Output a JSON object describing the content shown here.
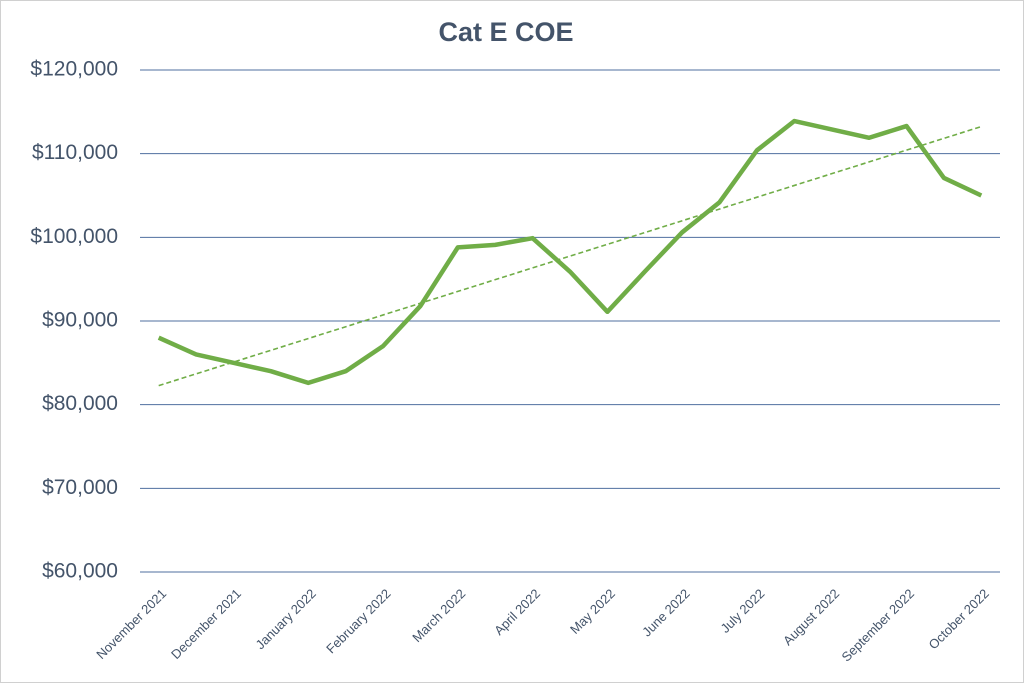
{
  "chart_data": {
    "type": "line",
    "title": "Cat E COE",
    "categories": [
      "November 2021",
      null,
      "December 2021",
      null,
      "January 2022",
      null,
      "February 2022",
      null,
      "March 2022",
      null,
      "April 2022",
      null,
      "May 2022",
      null,
      "June 2022",
      null,
      "July 2022",
      null,
      "August 2022",
      null,
      "September 2022",
      null,
      "October 2022"
    ],
    "series": [
      {
        "color": "#70ad47",
        "values": [
          88000,
          86000,
          85000,
          84000,
          82600,
          84000,
          87000,
          91800,
          98800,
          99100,
          99900,
          95900,
          91100,
          95900,
          100600,
          104200,
          110400,
          113900,
          112900,
          111900,
          113300,
          107100,
          105000
        ]
      }
    ],
    "ylim": [
      60000,
      120000
    ],
    "yticks": [
      {
        "value": 60000,
        "label": "$60,000"
      },
      {
        "value": 70000,
        "label": "$70,000"
      },
      {
        "value": 80000,
        "label": "$80,000"
      },
      {
        "value": 90000,
        "label": "$90,000"
      },
      {
        "value": 100000,
        "label": "$100,000"
      },
      {
        "value": 110000,
        "label": "$110,000"
      },
      {
        "value": 120000,
        "label": "$120,000"
      }
    ],
    "grid": true,
    "grid_color": "#4f6f9f",
    "trendline": true
  }
}
